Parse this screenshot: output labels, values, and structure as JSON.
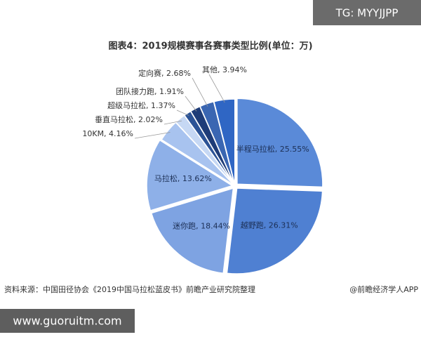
{
  "chart_data": {
    "type": "pie",
    "title": "图表4：2019规模赛事各赛事类型比例(单位：万)",
    "values": [
      25.55,
      26.31,
      18.44,
      13.62,
      4.16,
      2.02,
      1.37,
      1.91,
      2.68,
      3.94
    ],
    "value_labels": [
      "半程马拉松, 25.55%",
      "越野跑, 26.31%",
      "迷你跑, 18.44%",
      "马拉松, 13.62%",
      "10KM, 4.16%",
      "垂直马拉松, 2.02%",
      "超级马拉松, 1.37%",
      "团队接力跑, 1.91%",
      "定向赛, 2.68%",
      "其他, 3.94%"
    ],
    "colors": [
      "#5a8ad8",
      "#4f80d2",
      "#7ea3e2",
      "#8eb0e8",
      "#a8c3ef",
      "#c6d8f4",
      "#2c5396",
      "#1e3c78",
      "#3a66b2",
      "#2f66c4"
    ],
    "source": "资料来源：中国田径协会《2019中国马拉松蓝皮书》前瞻产业研究院整理",
    "credit": "@前瞻经济学人APP"
  },
  "overlays": {
    "top_right": "TG: MYYJJPP",
    "bottom_left": "www.guoruitm.com"
  }
}
